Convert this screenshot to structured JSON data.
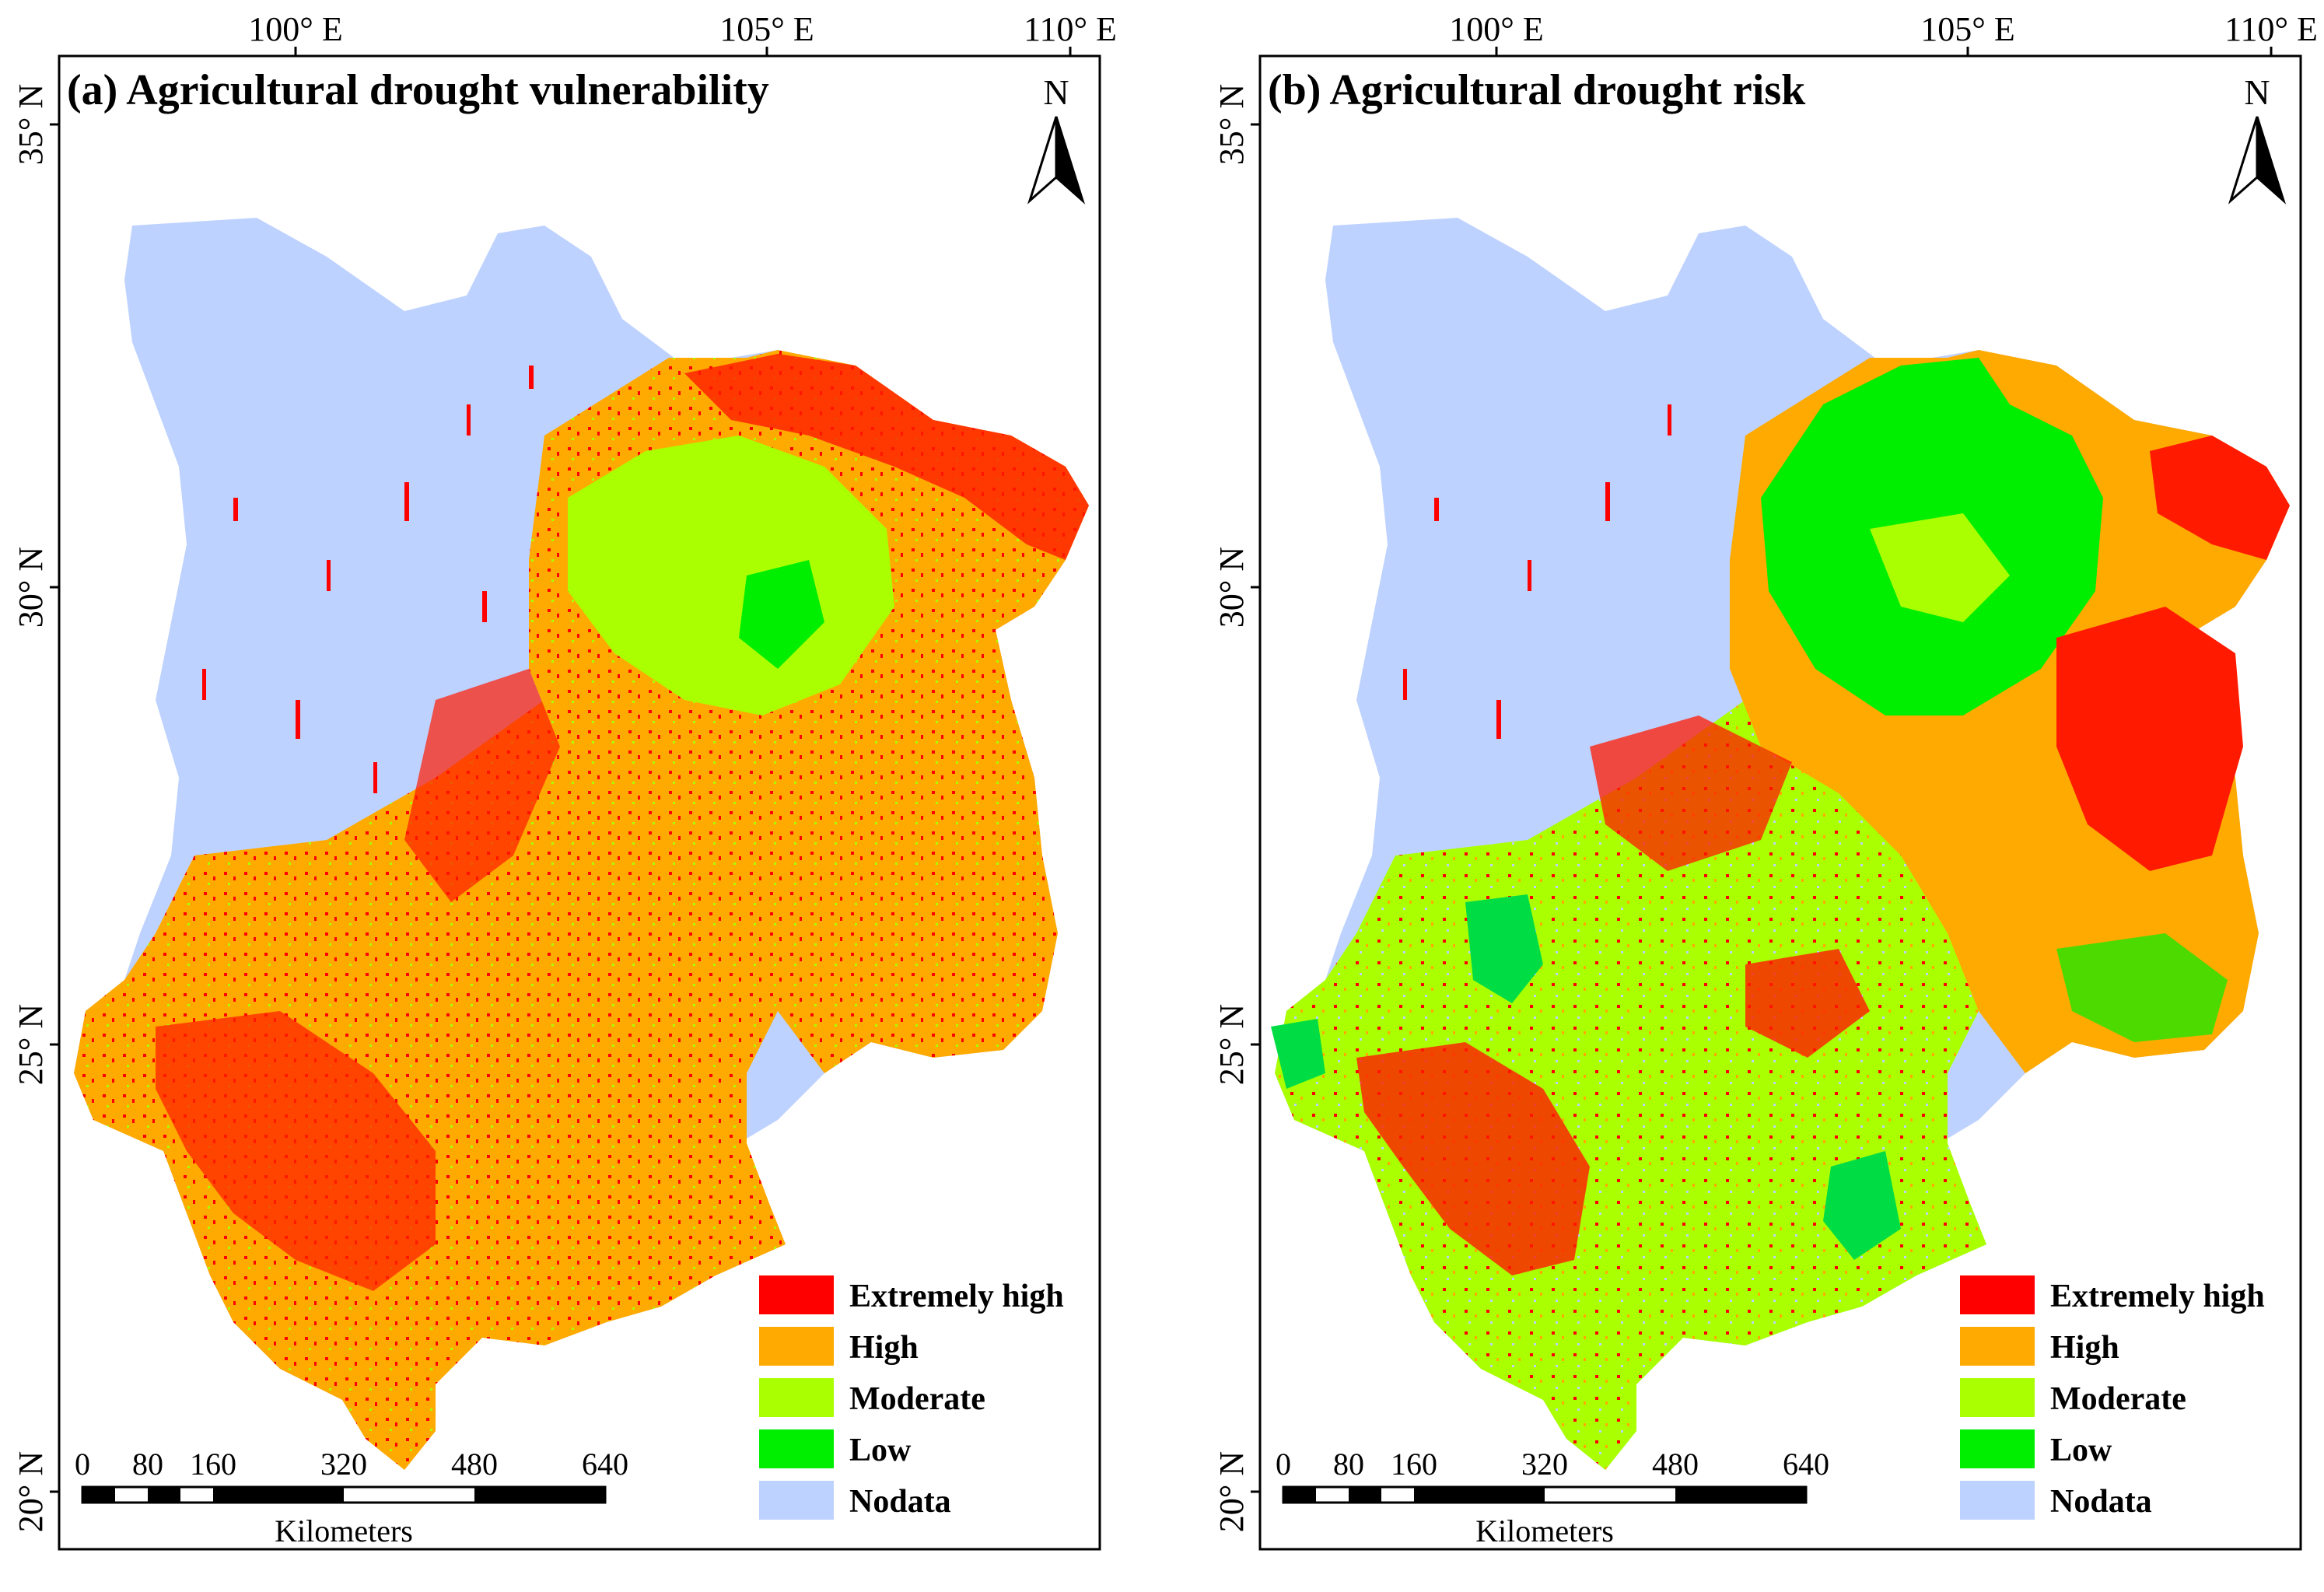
{
  "colors": {
    "extremely_high": "#ff0000",
    "high": "#ffaa00",
    "moderate": "#aaff00",
    "low": "#00ee00",
    "nodata": "#bed2ff",
    "frame": "#000000"
  },
  "axes": {
    "longitude_ticks": [
      "100° E",
      "105° E",
      "110° E"
    ],
    "latitude_ticks": [
      "35° N",
      "30° N",
      "25° N",
      "20° N"
    ]
  },
  "north_arrow": {
    "label": "N",
    "icon": "north-arrow-icon"
  },
  "legend": [
    {
      "label": "Extremely high",
      "color_key": "extremely_high"
    },
    {
      "label": "High",
      "color_key": "high"
    },
    {
      "label": "Moderate",
      "color_key": "moderate"
    },
    {
      "label": "Low",
      "color_key": "low"
    },
    {
      "label": "Nodata",
      "color_key": "nodata"
    }
  ],
  "scale_bar": {
    "ticks": [
      "0",
      "80",
      "160",
      "320",
      "480",
      "640"
    ],
    "unit": "Kilometers"
  },
  "panels": [
    {
      "id": "a",
      "title": "(a) Agricultural drought vulnerability"
    },
    {
      "id": "b",
      "title": "(b) Agricultural drought risk"
    }
  ]
}
